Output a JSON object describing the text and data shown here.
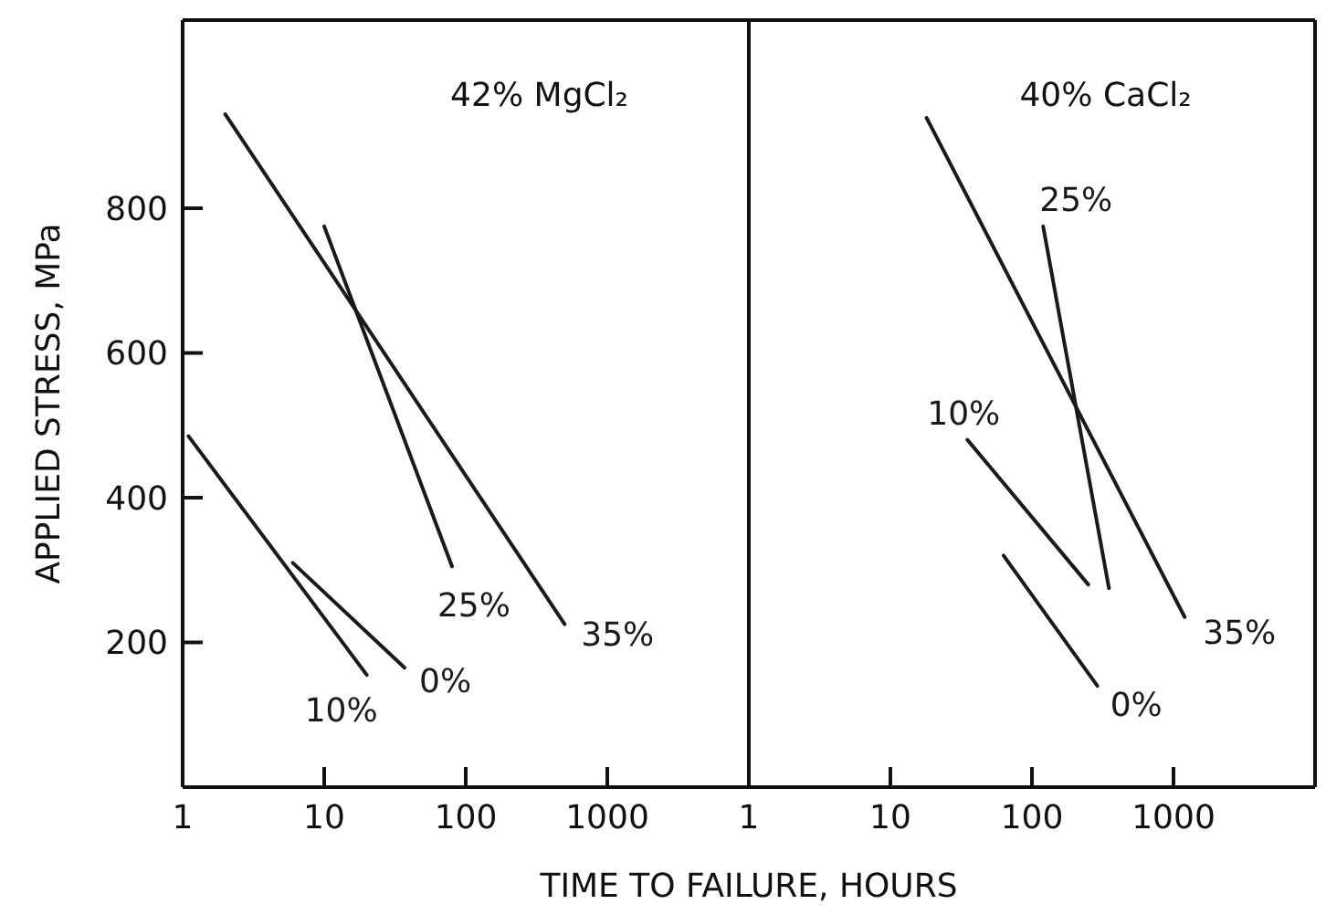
{
  "chart_data": [
    {
      "type": "line",
      "title": "42% MgCl₂",
      "xlabel": "TIME TO FAILURE, HOURS",
      "ylabel": "APPLIED STRESS, MPa",
      "log": "x",
      "xlim": [
        1,
        10000
      ],
      "xticks": [
        1,
        10,
        100,
        1000
      ],
      "ylim": [
        0,
        1060
      ],
      "yticks": [
        200,
        400,
        600,
        800
      ],
      "series": [
        {
          "name": "0%",
          "color": "#1a1a1a",
          "x": [
            6,
            37
          ],
          "values": [
            310,
            165
          ]
        },
        {
          "name": "10%",
          "color": "#1a1a1a",
          "x": [
            1.1,
            20
          ],
          "values": [
            485,
            155
          ]
        },
        {
          "name": "25%",
          "color": "#1a1a1a",
          "x": [
            10,
            80
          ],
          "values": [
            775,
            305
          ]
        },
        {
          "name": "35%",
          "color": "#1a1a1a",
          "x": [
            2,
            500
          ],
          "values": [
            930,
            225
          ]
        }
      ]
    },
    {
      "type": "line",
      "title": "40% CaCl₂",
      "log": "x",
      "xlim": [
        1,
        10000
      ],
      "xticks": [
        1,
        10,
        100,
        1000
      ],
      "ylim": [
        0,
        1060
      ],
      "tick_labels": "x",
      "series": [
        {
          "name": "0%",
          "color": "#1a1a1a",
          "x": [
            63,
            290
          ],
          "values": [
            320,
            140
          ]
        },
        {
          "name": "10%",
          "color": "#1a1a1a",
          "x": [
            35,
            250
          ],
          "values": [
            480,
            280
          ]
        },
        {
          "name": "25%",
          "color": "#1a1a1a",
          "x": [
            120,
            350
          ],
          "values": [
            775,
            275
          ]
        },
        {
          "name": "35%",
          "color": "#1a1a1a",
          "x": [
            18,
            1200
          ],
          "values": [
            925,
            235
          ]
        }
      ]
    }
  ]
}
